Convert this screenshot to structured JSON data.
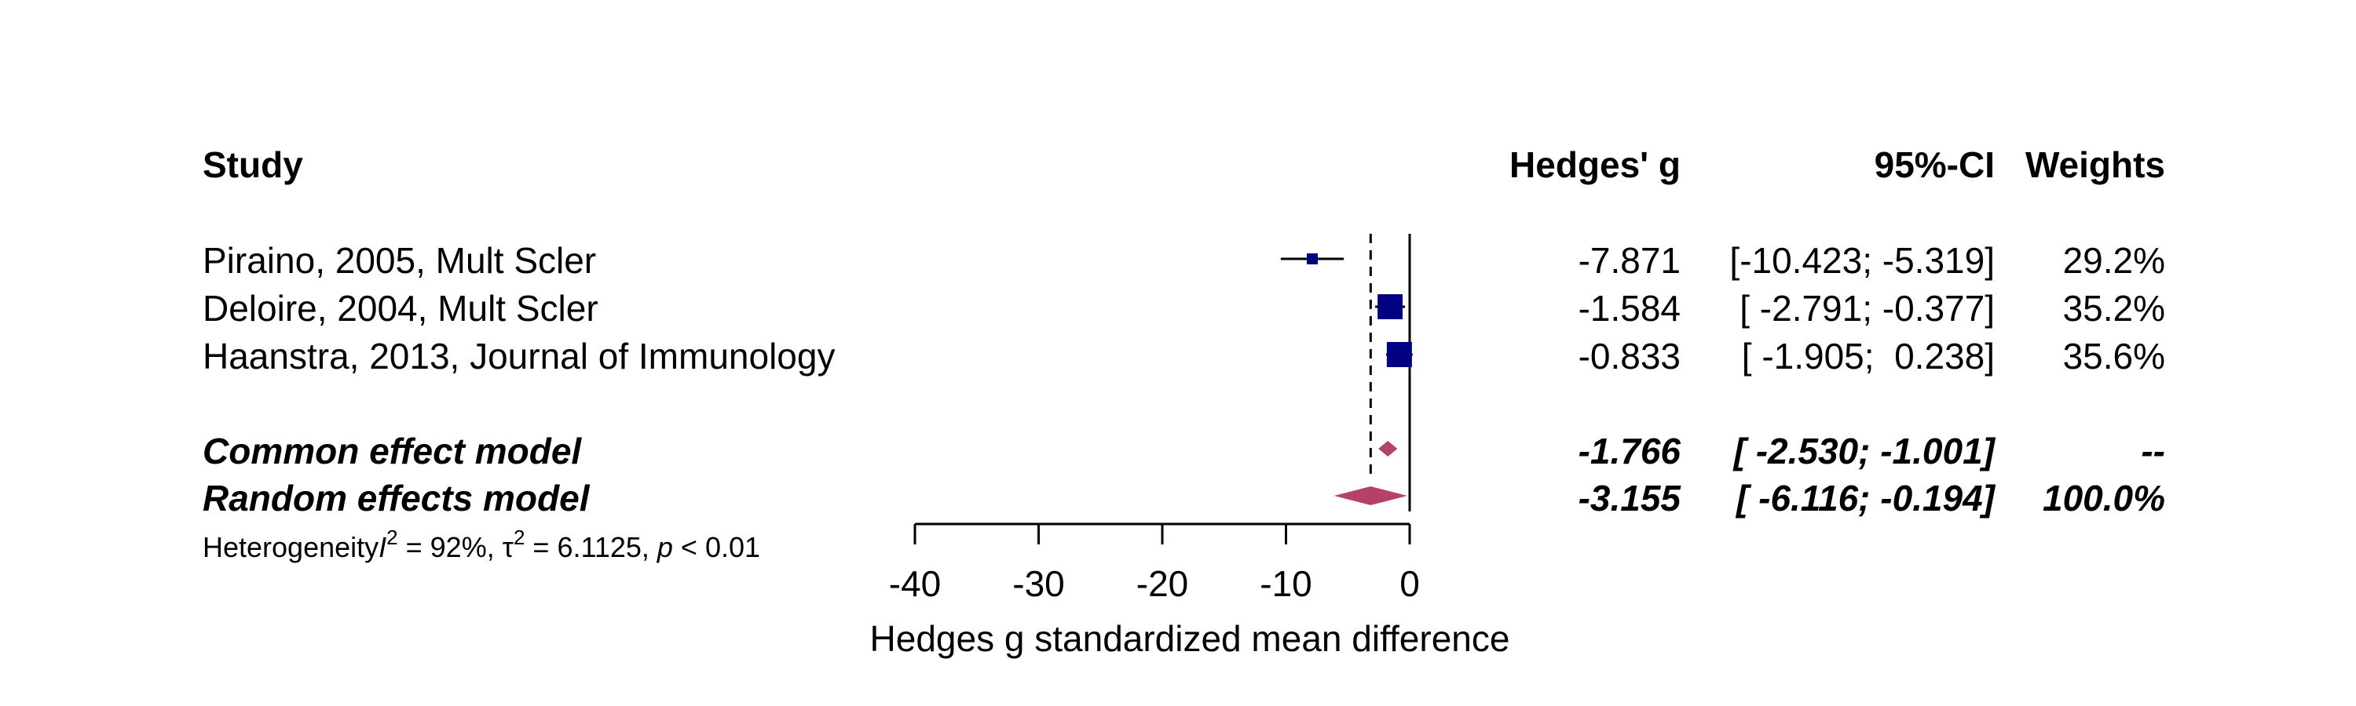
{
  "chart_data": {
    "type": "forest",
    "headers": {
      "study": "Study",
      "effect": "Hedges' g",
      "ci": "95%-CI",
      "weights": "Weights"
    },
    "studies": [
      {
        "label": "Piraino, 2005, Mult Scler",
        "g": -7.871,
        "lower": -10.423,
        "upper": -5.319,
        "g_text": "-7.871",
        "ci_text": "[-10.423; -5.319]",
        "weight": 29.2,
        "weight_text": "29.2%"
      },
      {
        "label": "Deloire, 2004, Mult Scler",
        "g": -1.584,
        "lower": -2.791,
        "upper": -0.377,
        "g_text": "-1.584",
        "ci_text": "[ -2.791; -0.377]",
        "weight": 35.2,
        "weight_text": "35.2%"
      },
      {
        "label": "Haanstra, 2013, Journal of Immunology",
        "g": -0.833,
        "lower": -1.905,
        "upper": 0.238,
        "g_text": "-0.833",
        "ci_text": "[ -1.905;  0.238]",
        "weight": 35.6,
        "weight_text": "35.6%"
      }
    ],
    "models": [
      {
        "label": "Common effect model",
        "g": -1.766,
        "lower": -2.53,
        "upper": -1.001,
        "g_text": "-1.766",
        "ci_text": "[ -2.530; -1.001]",
        "weight_text": "--"
      },
      {
        "label": "Random effects model",
        "g": -3.155,
        "lower": -6.116,
        "upper": -0.194,
        "g_text": "-3.155",
        "ci_text": "[ -6.116; -0.194]",
        "weight_text": "100.0%"
      }
    ],
    "heterogeneity": {
      "prefix": "Heterogeneity",
      "i2_symbol": "I",
      "i2_text": " = 92%, ",
      "tau_symbol": "τ",
      "tau_text": " = 6.1125, ",
      "p_symbol": "p",
      "p_text": " < 0.01"
    },
    "xaxis": {
      "label": "Hedges g standardized mean difference",
      "ticks": [
        -40,
        -30,
        -20,
        -10,
        0
      ],
      "tick_labels": [
        "-40",
        "-30",
        "-20",
        "-10",
        "0"
      ],
      "range": [
        -40,
        0
      ]
    },
    "reference_line": 0,
    "random_effect_line": -3.155,
    "colors": {
      "study_marker": "#000080",
      "diamond": "#B5406A",
      "line": "#000000"
    }
  }
}
